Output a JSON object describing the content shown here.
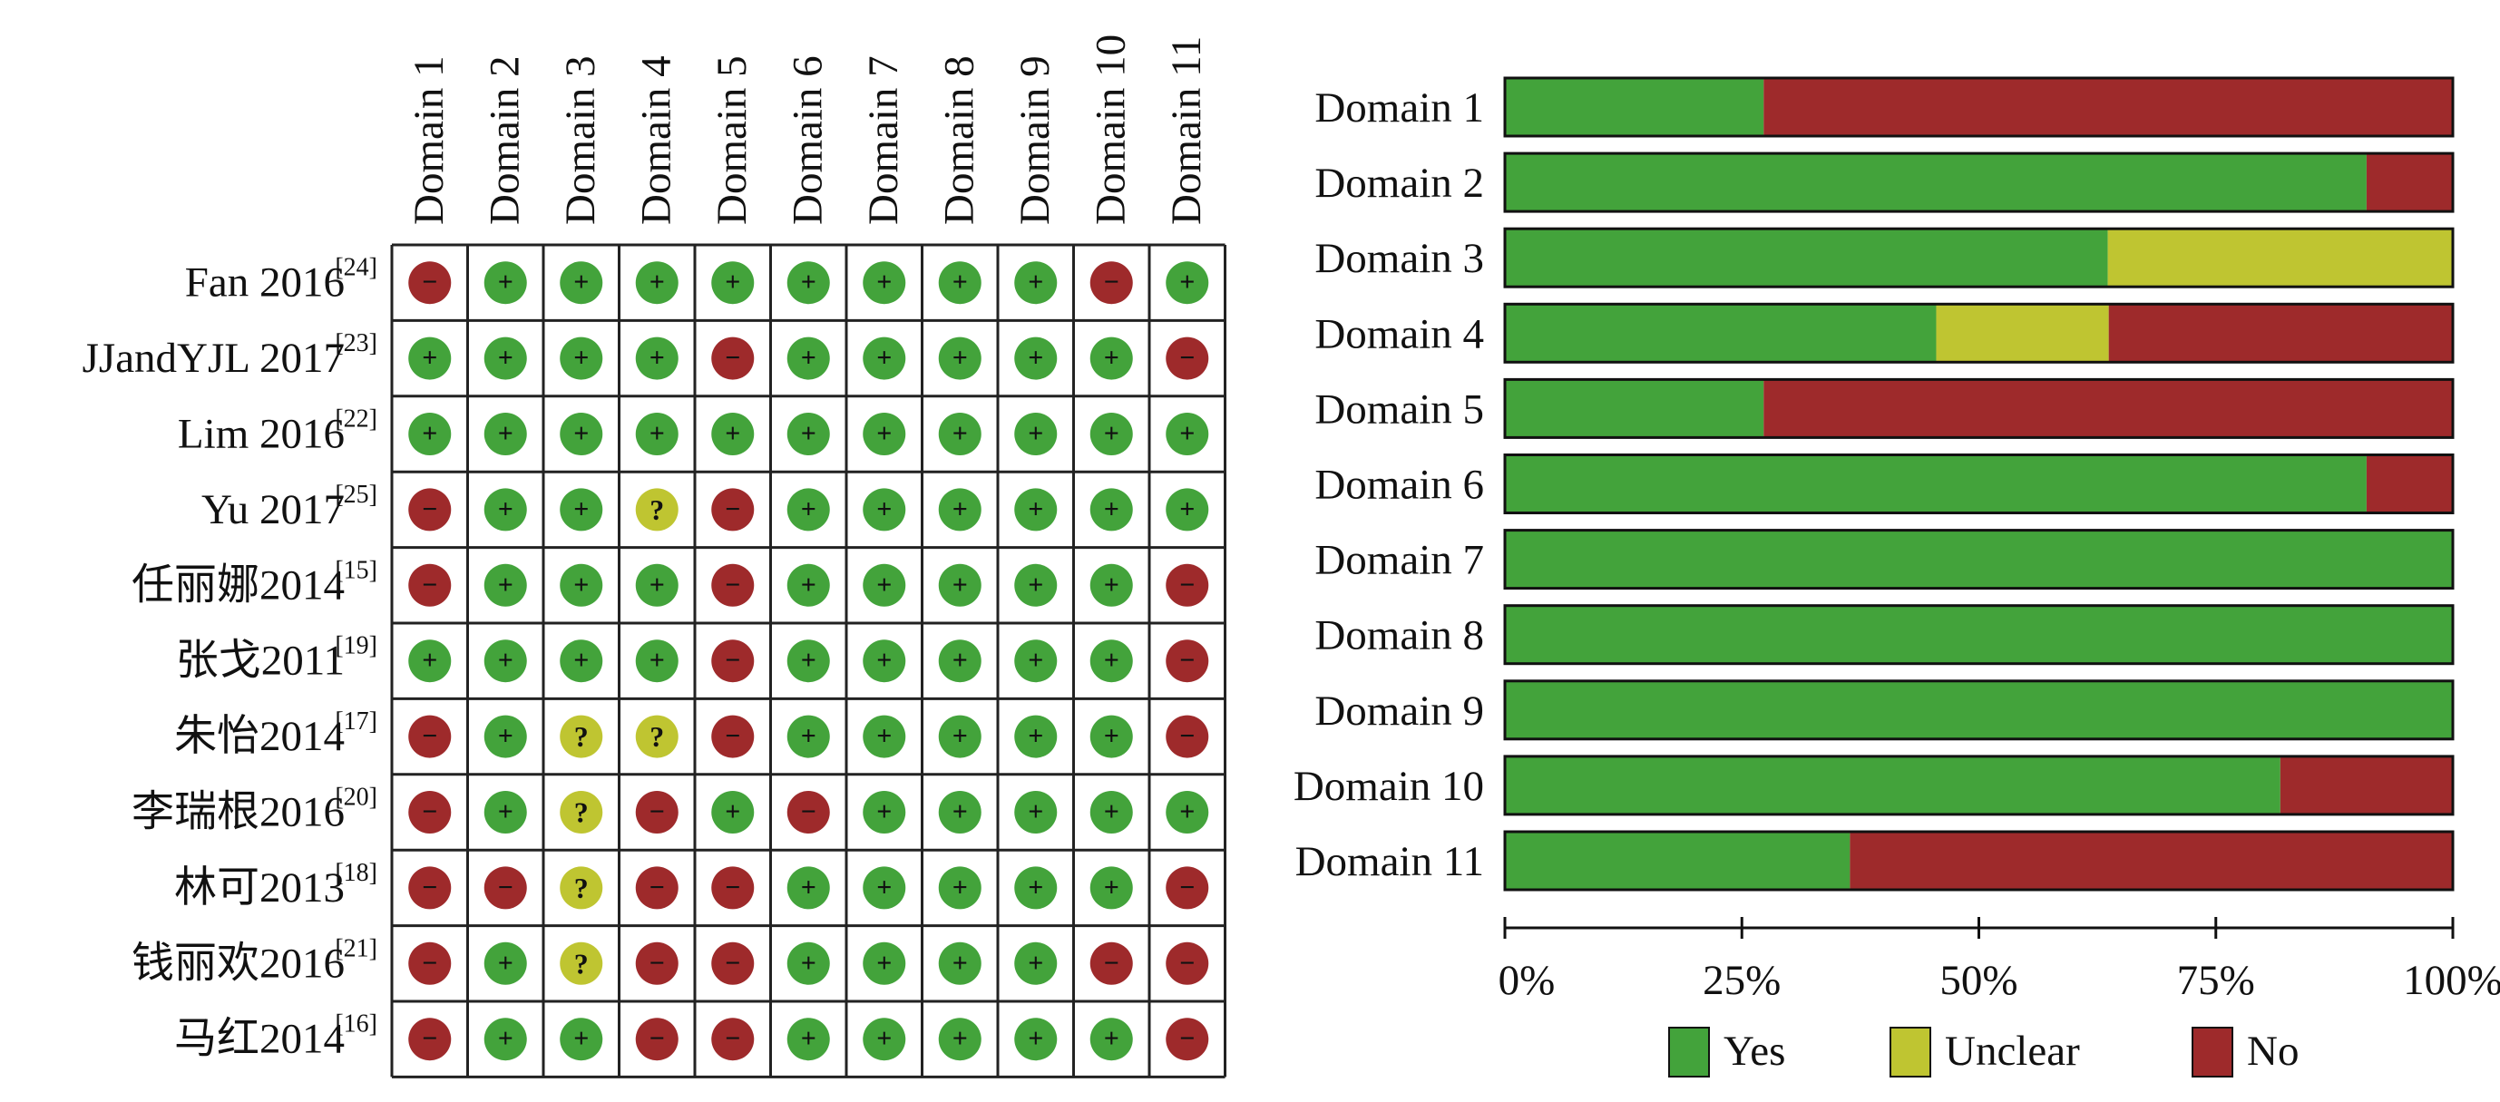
{
  "colors": {
    "yes": "#43a33b",
    "unclear": "#bfc531",
    "no": "#9e2a2b",
    "grid": "#222222"
  },
  "chart_data": [
    {
      "type": "table",
      "title": "",
      "columns": [
        "Domain 1",
        "Domain 2",
        "Domain 3",
        "Domain 4",
        "Domain 5",
        "Domain 6",
        "Domain 7",
        "Domain 8",
        "Domain 9",
        "Domain 10",
        "Domain 11"
      ],
      "symbols": {
        "+": "+",
        "-": "−",
        "?": "?"
      },
      "rows": [
        {
          "name": "Fan 2016",
          "ref": "[24]",
          "values": [
            "-",
            "+",
            "+",
            "+",
            "+",
            "+",
            "+",
            "+",
            "+",
            "-",
            "+"
          ]
        },
        {
          "name": "JJandYJL 2017",
          "ref": "[23]",
          "values": [
            "+",
            "+",
            "+",
            "+",
            "-",
            "+",
            "+",
            "+",
            "+",
            "+",
            "-"
          ]
        },
        {
          "name": "Lim 2016",
          "ref": "[22]",
          "values": [
            "+",
            "+",
            "+",
            "+",
            "+",
            "+",
            "+",
            "+",
            "+",
            "+",
            "+"
          ]
        },
        {
          "name": "Yu 2017",
          "ref": "[25]",
          "values": [
            "-",
            "+",
            "+",
            "?",
            "-",
            "+",
            "+",
            "+",
            "+",
            "+",
            "+"
          ]
        },
        {
          "name": "任丽娜2014",
          "ref": "[15]",
          "values": [
            "-",
            "+",
            "+",
            "+",
            "-",
            "+",
            "+",
            "+",
            "+",
            "+",
            "-"
          ]
        },
        {
          "name": "张戈2011",
          "ref": "[19]",
          "values": [
            "+",
            "+",
            "+",
            "+",
            "-",
            "+",
            "+",
            "+",
            "+",
            "+",
            "-"
          ]
        },
        {
          "name": "朱怡2014",
          "ref": "[17]",
          "values": [
            "-",
            "+",
            "?",
            "?",
            "-",
            "+",
            "+",
            "+",
            "+",
            "+",
            "-"
          ]
        },
        {
          "name": "李瑞根2016",
          "ref": "[20]",
          "values": [
            "-",
            "+",
            "?",
            "-",
            "+",
            "-",
            "+",
            "+",
            "+",
            "+",
            "+"
          ]
        },
        {
          "name": "林可2013",
          "ref": "[18]",
          "values": [
            "-",
            "-",
            "?",
            "-",
            "-",
            "+",
            "+",
            "+",
            "+",
            "+",
            "-"
          ]
        },
        {
          "name": "钱丽欢2016",
          "ref": "[21]",
          "values": [
            "-",
            "+",
            "?",
            "-",
            "-",
            "+",
            "+",
            "+",
            "+",
            "-",
            "-"
          ]
        },
        {
          "name": "马红2014",
          "ref": "[16]",
          "values": [
            "-",
            "+",
            "+",
            "-",
            "-",
            "+",
            "+",
            "+",
            "+",
            "+",
            "-"
          ]
        }
      ]
    },
    {
      "type": "bar",
      "stacked": true,
      "orientation": "horizontal",
      "title": "",
      "xlabel": "",
      "ylabel": "",
      "xlim": [
        0,
        100
      ],
      "unit": "%",
      "categories": [
        "Domain 1",
        "Domain 2",
        "Domain 3",
        "Domain 4",
        "Domain 5",
        "Domain 6",
        "Domain 7",
        "Domain 8",
        "Domain 9",
        "Domain 10",
        "Domain 11"
      ],
      "series": [
        {
          "name": "Yes",
          "values": [
            27.3,
            90.9,
            63.6,
            45.5,
            27.3,
            90.9,
            100,
            100,
            100,
            81.8,
            36.4
          ]
        },
        {
          "name": "Unclear",
          "values": [
            0,
            0,
            36.4,
            18.2,
            0,
            0,
            0,
            0,
            0,
            0,
            0
          ]
        },
        {
          "name": "No",
          "values": [
            72.7,
            9.1,
            0,
            36.4,
            72.7,
            9.1,
            0,
            0,
            0,
            18.2,
            63.6
          ]
        }
      ],
      "ticks": [
        "0%",
        "25%",
        "50%",
        "75%",
        "100%"
      ],
      "legend": {
        "placement": "bottom",
        "entries": [
          "Yes",
          "Unclear",
          "No"
        ]
      }
    }
  ]
}
